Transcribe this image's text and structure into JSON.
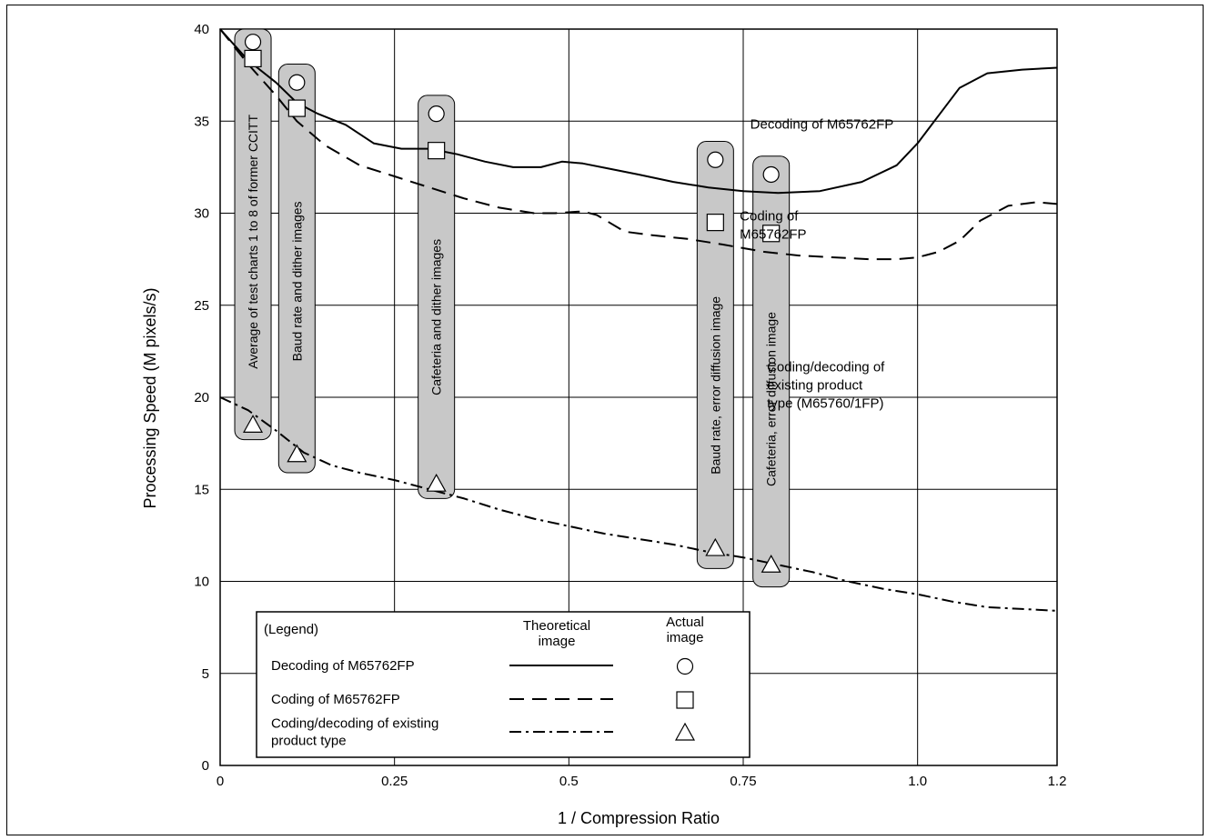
{
  "chart_data": {
    "type": "line",
    "xlabel": "1 / Compression Ratio",
    "ylabel": "Processing Speed (M pixels/s)",
    "xlim": [
      0,
      1.2
    ],
    "ylim": [
      0,
      40
    ],
    "grid": true,
    "x_ticks": [
      {
        "value": 0,
        "label": "0"
      },
      {
        "value": 0.25,
        "label": "0.25"
      },
      {
        "value": 0.5,
        "label": "0.5"
      },
      {
        "value": 0.75,
        "label": "0.75"
      },
      {
        "value": 1.0,
        "label": "1.0"
      },
      {
        "value": 1.2,
        "label": "1.2"
      }
    ],
    "y_ticks": [
      {
        "value": 0,
        "label": "0"
      },
      {
        "value": 5,
        "label": "5"
      },
      {
        "value": 10,
        "label": "10"
      },
      {
        "value": 15,
        "label": "15"
      },
      {
        "value": 20,
        "label": "20"
      },
      {
        "value": 25,
        "label": "25"
      },
      {
        "value": 30,
        "label": "30"
      },
      {
        "value": 35,
        "label": "35"
      },
      {
        "value": 40,
        "label": "40"
      }
    ],
    "series": [
      {
        "name": "Decoding of M65762FP",
        "style": "solid",
        "x": [
          0,
          0.04,
          0.08,
          0.11,
          0.14,
          0.18,
          0.22,
          0.26,
          0.3,
          0.34,
          0.38,
          0.42,
          0.46,
          0.49,
          0.52,
          0.56,
          0.6,
          0.65,
          0.7,
          0.75,
          0.8,
          0.86,
          0.92,
          0.97,
          1.0,
          1.03,
          1.06,
          1.1,
          1.15,
          1.2
        ],
        "y": [
          40,
          38.3,
          37.1,
          36.0,
          35.4,
          34.8,
          33.8,
          33.5,
          33.5,
          33.2,
          32.8,
          32.5,
          32.5,
          32.8,
          32.7,
          32.4,
          32.1,
          31.7,
          31.4,
          31.2,
          31.1,
          31.2,
          31.7,
          32.6,
          33.8,
          35.3,
          36.8,
          37.6,
          37.8,
          37.9
        ]
      },
      {
        "name": "Coding of M65762FP",
        "style": "dashed",
        "x": [
          0,
          0.04,
          0.08,
          0.11,
          0.15,
          0.2,
          0.25,
          0.3,
          0.35,
          0.4,
          0.45,
          0.48,
          0.52,
          0.54,
          0.58,
          0.62,
          0.67,
          0.72,
          0.78,
          0.83,
          0.88,
          0.93,
          0.97,
          1.0,
          1.03,
          1.06,
          1.09,
          1.13,
          1.17,
          1.2
        ],
        "y": [
          40,
          38.1,
          36.4,
          35.0,
          33.7,
          32.6,
          32.0,
          31.4,
          30.8,
          30.3,
          30.0,
          30.0,
          30.1,
          29.9,
          29.0,
          28.8,
          28.6,
          28.3,
          27.9,
          27.7,
          27.6,
          27.5,
          27.5,
          27.6,
          27.9,
          28.5,
          29.6,
          30.4,
          30.6,
          30.5
        ]
      },
      {
        "name": "Coding/decoding of existing product type (M65760/1FP)",
        "style": "dash-dot",
        "x": [
          0,
          0.04,
          0.08,
          0.12,
          0.16,
          0.2,
          0.25,
          0.3,
          0.35,
          0.4,
          0.45,
          0.5,
          0.55,
          0.6,
          0.65,
          0.7,
          0.75,
          0.8,
          0.85,
          0.9,
          0.95,
          1.0,
          1.05,
          1.1,
          1.15,
          1.2
        ],
        "y": [
          20,
          19.3,
          18.2,
          17.0,
          16.3,
          15.9,
          15.5,
          15.0,
          14.5,
          13.9,
          13.4,
          13.0,
          12.6,
          12.3,
          12.0,
          11.6,
          11.3,
          10.9,
          10.5,
          10.0,
          9.6,
          9.3,
          8.9,
          8.6,
          8.5,
          8.4
        ]
      }
    ],
    "actual_images": [
      {
        "label": "Average of test charts 1 to 8 of former CCITT",
        "x": 0.047,
        "decoding": 39.3,
        "coding": 38.4,
        "existing": 18.5,
        "box_top": 40.0,
        "box_bottom": 17.7
      },
      {
        "label": "Baud rate and dither images",
        "x": 0.11,
        "decoding": 37.1,
        "coding": 35.7,
        "existing": 16.9,
        "box_top": 38.1,
        "box_bottom": 15.9
      },
      {
        "label": "Cafeteria and dither images",
        "x": 0.31,
        "decoding": 35.4,
        "coding": 33.4,
        "existing": 15.3,
        "box_top": 36.4,
        "box_bottom": 14.5
      },
      {
        "label": "Baud rate, error diffusion image",
        "x": 0.71,
        "decoding": 32.9,
        "coding": 29.5,
        "existing": 11.8,
        "box_top": 33.9,
        "box_bottom": 10.7
      },
      {
        "label": "Cafeteria, error diffusion image",
        "x": 0.79,
        "decoding": 32.1,
        "coding": 28.9,
        "existing": 10.9,
        "box_top": 33.1,
        "box_bottom": 9.7
      }
    ],
    "annotations": [
      {
        "text": [
          "Decoding of M65762FP"
        ],
        "x": 0.76,
        "y": 34.6,
        "anchor": "start"
      },
      {
        "text": [
          "Coding of",
          "M65762FP"
        ],
        "x": 0.745,
        "y": 29.6,
        "anchor": "start"
      },
      {
        "text": [
          "Coding/decoding of",
          "existing product",
          "type (M65760/1FP)"
        ],
        "x": 0.784,
        "y": 21.4,
        "anchor": "start"
      }
    ],
    "legend": {
      "placement": "bottom-left",
      "title": "(Legend)",
      "col_theoretical": [
        "Theoretical",
        "image"
      ],
      "col_actual": [
        "Actual",
        "image"
      ],
      "entries": [
        {
          "label": [
            "Decoding of M65762FP"
          ],
          "style": "solid",
          "marker": "circle"
        },
        {
          "label": [
            "Coding of M65762FP"
          ],
          "style": "dashed",
          "marker": "square"
        },
        {
          "label": [
            "Coding/decoding of existing",
            "product type"
          ],
          "style": "dash-dot",
          "marker": "triangle"
        }
      ]
    },
    "colors": {
      "line": "#000000",
      "grid": "#000000",
      "box_fill": "#c8c8c8",
      "marker_fill": "#ffffff"
    }
  }
}
